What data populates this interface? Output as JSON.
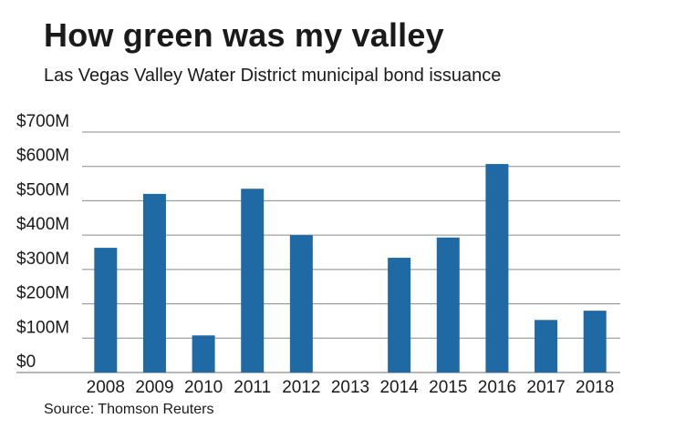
{
  "header": {
    "title": "How green was my valley",
    "subtitle": "Las Vegas Valley Water District municipal bond issuance"
  },
  "footer": {
    "source": "Source: Thomson Reuters"
  },
  "colors": {
    "bar": "#1f6aa5",
    "grid": "#8a8a8a",
    "text": "#1a1a1a"
  },
  "chart_data": {
    "type": "bar",
    "title": "How green was my valley",
    "subtitle": "Las Vegas Valley Water District municipal bond issuance",
    "xlabel": "",
    "ylabel": "",
    "categories": [
      "2008",
      "2009",
      "2010",
      "2011",
      "2012",
      "2013",
      "2014",
      "2015",
      "2016",
      "2017",
      "2018"
    ],
    "values": [
      363,
      520,
      108,
      535,
      400,
      0,
      334,
      393,
      607,
      153,
      180
    ],
    "units": "$M",
    "ylim": [
      0,
      700
    ],
    "yticks": [
      0,
      100,
      200,
      300,
      400,
      500,
      600,
      700
    ],
    "ytick_labels": [
      "$0",
      "$100M",
      "$200M",
      "$300M",
      "$400M",
      "$500M",
      "$600M",
      "$700M"
    ],
    "grid": true,
    "legend": "none"
  }
}
